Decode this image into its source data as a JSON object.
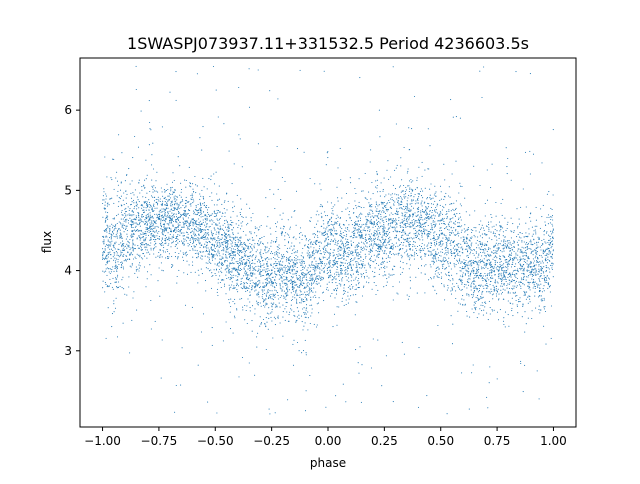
{
  "chart_data": {
    "type": "scatter",
    "title": "1SWASPJ073937.11+331532.5 Period 4236603.5s",
    "xlabel": "phase",
    "ylabel": "flux",
    "xlim": [
      -1.1,
      1.1
    ],
    "ylim": [
      2.05,
      6.65
    ],
    "x_ticks": [
      -1.0,
      -0.75,
      -0.5,
      -0.25,
      0.0,
      0.25,
      0.5,
      0.75,
      1.0
    ],
    "x_tick_labels": [
      "−1.00",
      "−0.75",
      "−0.50",
      "−0.25",
      "0.00",
      "0.25",
      "0.50",
      "0.75",
      "1.00"
    ],
    "y_ticks": [
      3,
      4,
      5,
      6
    ],
    "y_tick_labels": [
      "3",
      "4",
      "5",
      "6"
    ],
    "series_color": "#1f77b4",
    "marker": "tiny dot",
    "grid": false,
    "profile": {
      "phase": [
        -1.0,
        -0.95,
        -0.9,
        -0.85,
        -0.8,
        -0.75,
        -0.7,
        -0.65,
        -0.6,
        -0.55,
        -0.5,
        -0.45,
        -0.4,
        -0.35,
        -0.3,
        -0.25,
        -0.2,
        -0.15,
        -0.1,
        -0.05,
        0.0,
        0.05,
        0.1,
        0.15,
        0.2,
        0.25,
        0.3,
        0.35,
        0.4,
        0.45,
        0.5,
        0.55,
        0.6,
        0.65,
        0.7,
        0.75,
        0.8,
        0.85,
        0.9,
        0.95,
        1.0
      ],
      "flux_center": [
        4.5,
        4.2,
        4.5,
        4.5,
        4.6,
        4.6,
        4.6,
        4.6,
        4.6,
        4.5,
        4.4,
        4.25,
        4.15,
        4.05,
        3.95,
        3.95,
        4.0,
        3.9,
        3.85,
        4.1,
        4.3,
        4.2,
        4.25,
        4.35,
        4.45,
        4.45,
        4.55,
        4.6,
        4.6,
        4.5,
        4.4,
        4.3,
        4.15,
        4.05,
        4.05,
        4.1,
        4.05,
        4.05,
        4.1,
        4.0,
        4.4
      ],
      "flux_spread": [
        0.45,
        0.55,
        0.45,
        0.4,
        0.4,
        0.4,
        0.4,
        0.4,
        0.4,
        0.4,
        0.45,
        0.45,
        0.45,
        0.45,
        0.45,
        0.45,
        0.45,
        0.45,
        0.45,
        0.45,
        0.45,
        0.5,
        0.45,
        0.45,
        0.45,
        0.45,
        0.45,
        0.45,
        0.45,
        0.45,
        0.45,
        0.45,
        0.45,
        0.45,
        0.45,
        0.45,
        0.45,
        0.45,
        0.45,
        0.45,
        0.45
      ]
    }
  }
}
